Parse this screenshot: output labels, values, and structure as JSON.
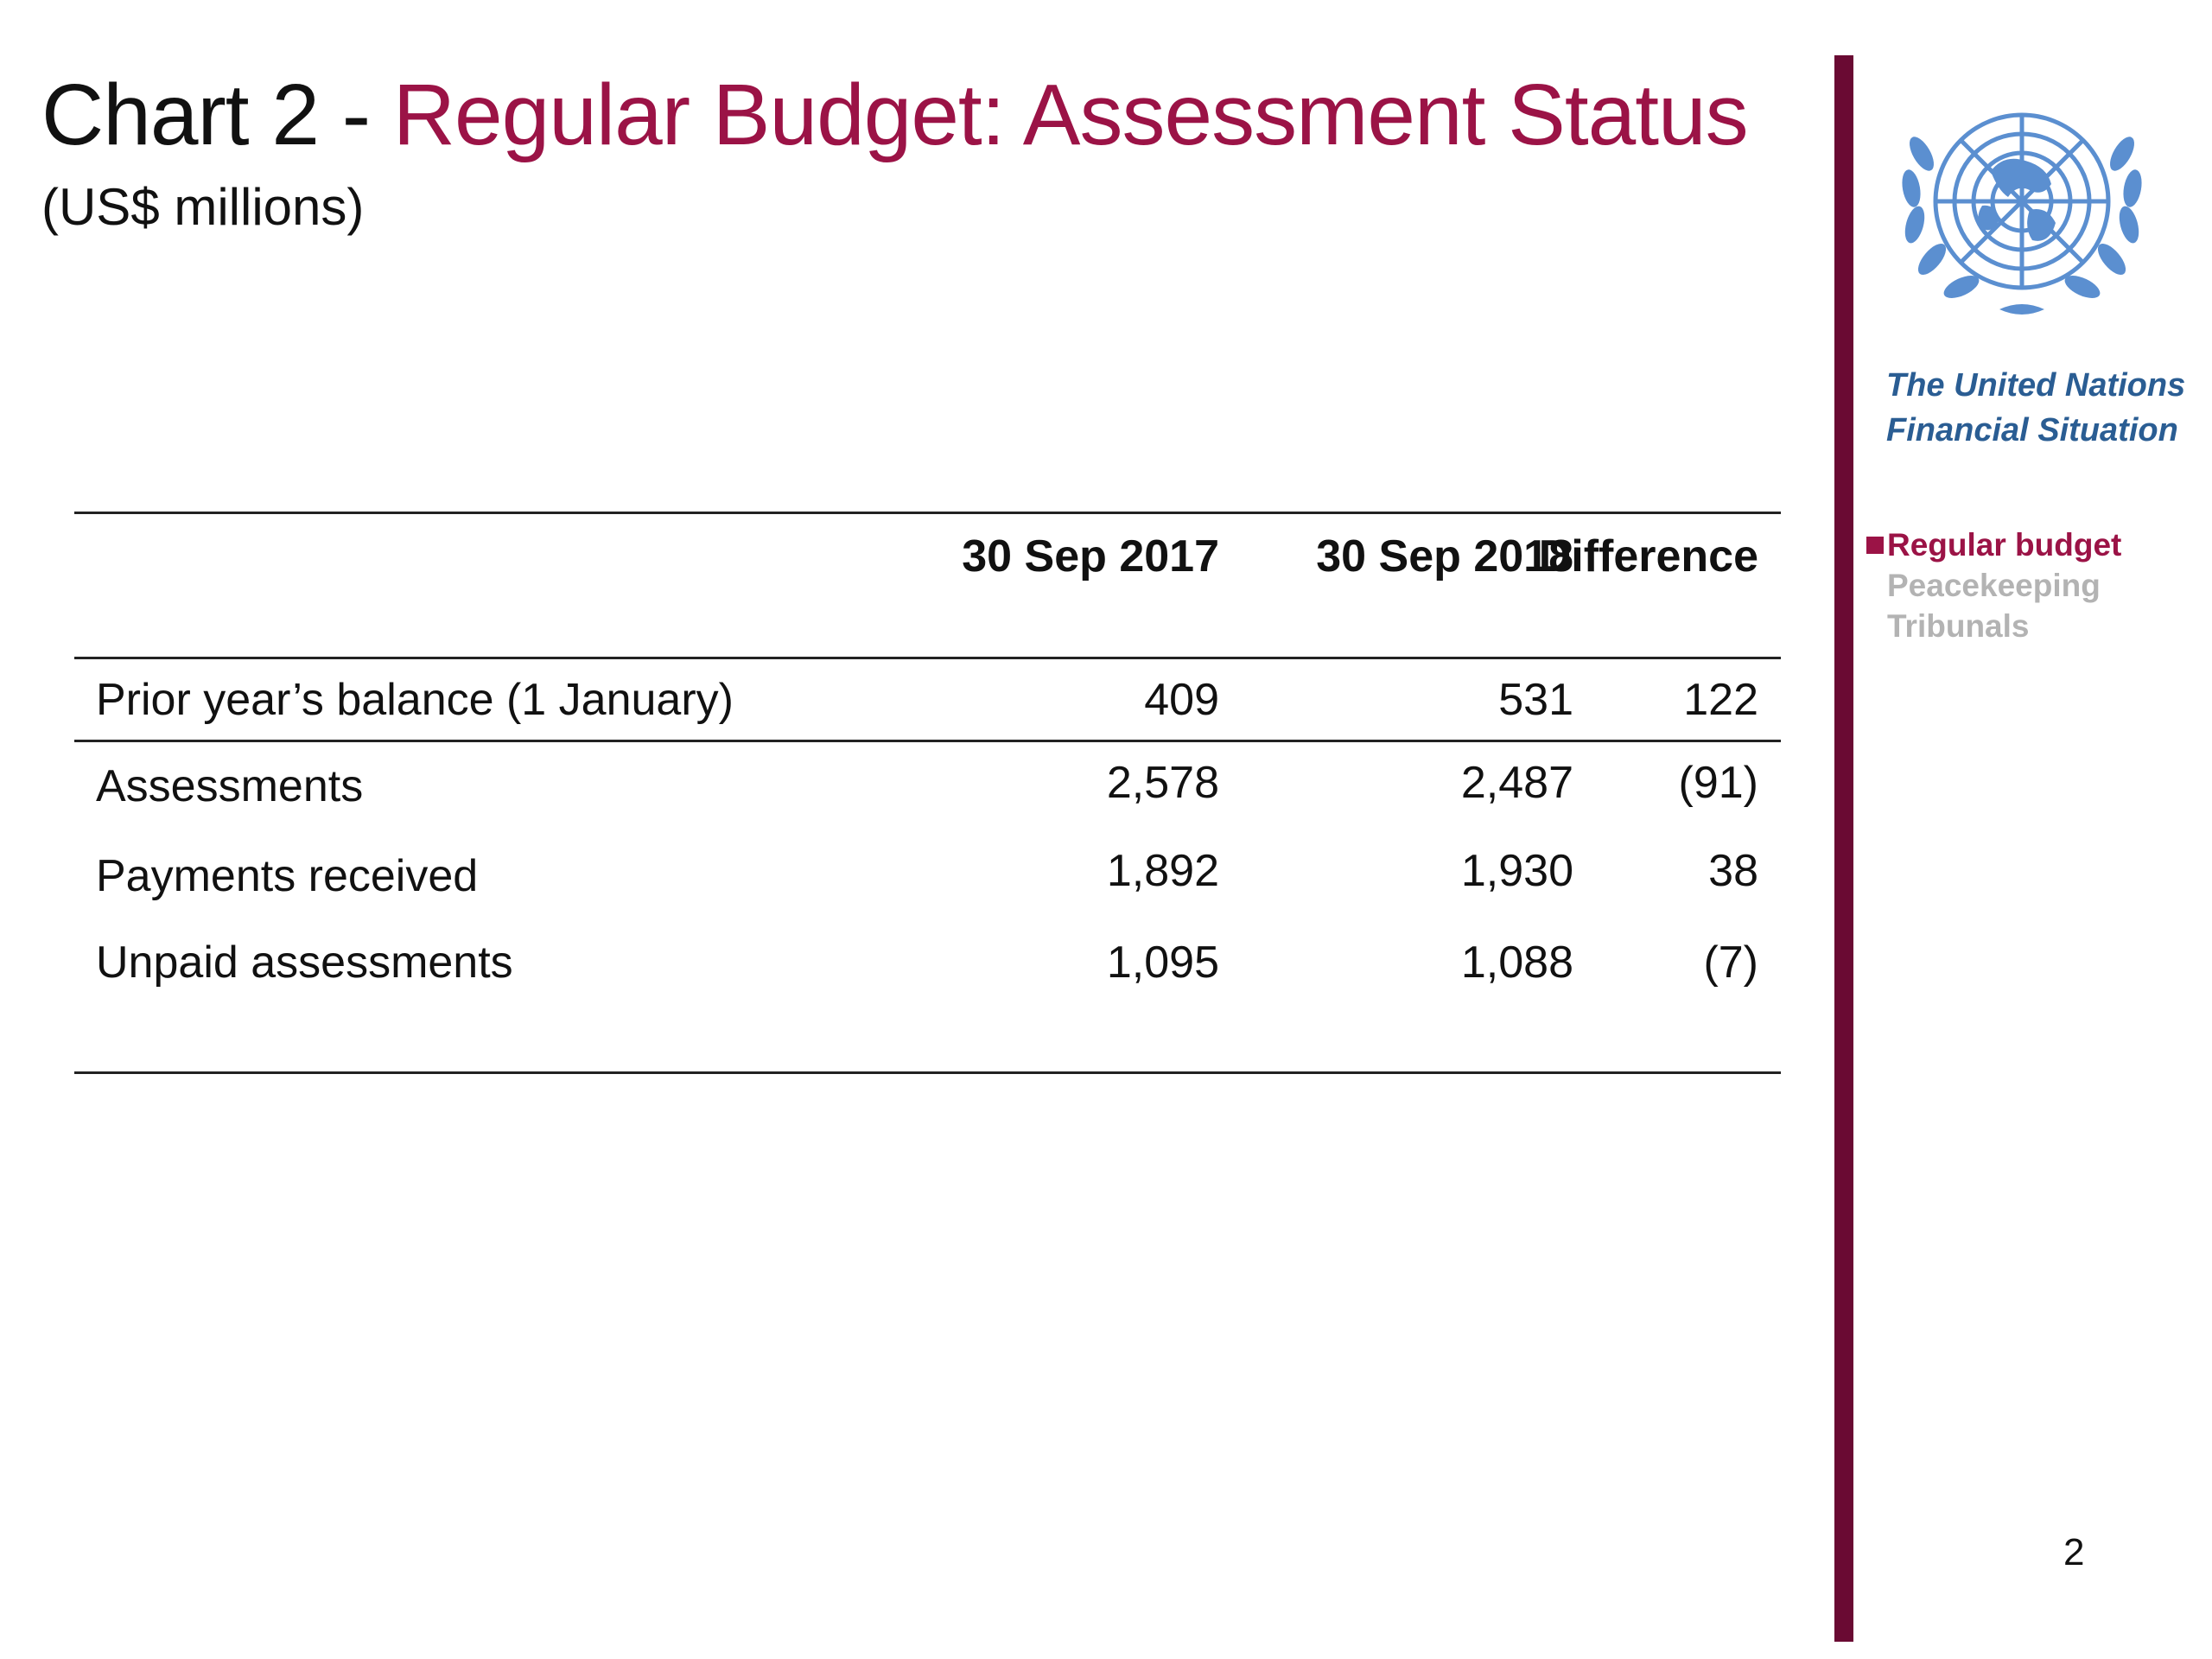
{
  "header": {
    "title_prefix": "Chart 2 - ",
    "title_main": "Regular Budget: Assessment Status",
    "subtitle": "(US$ millions)"
  },
  "table": {
    "columns": [
      "30 Sep 2017",
      "30 Sep 2018",
      "Difference"
    ],
    "rows": [
      {
        "label": "Prior year’s balance (1 January)",
        "values": [
          "409",
          "531",
          "122"
        ]
      },
      {
        "label": "Assessments",
        "values": [
          "2,578",
          "2,487",
          "(91)"
        ]
      },
      {
        "label": "Payments received",
        "values": [
          "1,892",
          "1,930",
          "38"
        ]
      },
      {
        "label": "Unpaid assessments",
        "values": [
          "1,095",
          "1,088",
          "(7)"
        ]
      }
    ]
  },
  "sidebar": {
    "org_line1": "The United Nations",
    "org_line2": "Financial Situation",
    "nav": [
      {
        "label": "Regular budget",
        "active": true
      },
      {
        "label": "Peacekeeping",
        "active": false
      },
      {
        "label": "Tribunals",
        "active": false
      }
    ]
  },
  "footer": {
    "page_number": "2"
  },
  "colors": {
    "accent": "#9b1346",
    "bar": "#6a0a33",
    "emblem": "#5b8fd0",
    "org_text": "#2a5d93",
    "inactive": "#b3b3b3"
  },
  "icons": {
    "emblem": "un-emblem-icon"
  }
}
